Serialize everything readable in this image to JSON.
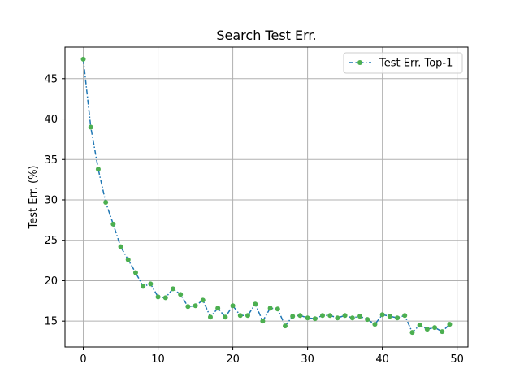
{
  "chart_data": {
    "type": "line",
    "title": "Search Test Err.",
    "xlabel": "",
    "ylabel": "Test Err. (%)",
    "xlim": [
      -2.45,
      51.45
    ],
    "ylim": [
      11.8,
      48.9
    ],
    "xticks": [
      0,
      10,
      20,
      30,
      40,
      50
    ],
    "yticks": [
      15,
      20,
      25,
      30,
      35,
      40,
      45
    ],
    "grid": true,
    "legend_position": "top-right",
    "series": [
      {
        "name": "Test Err. Top-1",
        "line_color": "#1f77b4",
        "marker_color": "#4caf50",
        "line_style": "dash-dot",
        "x": [
          0,
          1,
          2,
          3,
          4,
          5,
          6,
          7,
          8,
          9,
          10,
          11,
          12,
          13,
          14,
          15,
          16,
          17,
          18,
          19,
          20,
          21,
          22,
          23,
          24,
          25,
          26,
          27,
          28,
          29,
          30,
          31,
          32,
          33,
          34,
          35,
          36,
          37,
          38,
          39,
          40,
          41,
          42,
          43,
          44,
          45,
          46,
          47,
          48,
          49
        ],
        "y": [
          47.4,
          39.0,
          33.8,
          29.7,
          27.0,
          24.2,
          22.6,
          21.0,
          19.3,
          19.6,
          18.0,
          17.9,
          19.0,
          18.3,
          16.8,
          16.9,
          17.6,
          15.5,
          16.6,
          15.5,
          16.9,
          15.7,
          15.7,
          17.1,
          15.0,
          16.6,
          16.5,
          14.4,
          15.6,
          15.7,
          15.4,
          15.3,
          15.7,
          15.7,
          15.4,
          15.7,
          15.4,
          15.6,
          15.2,
          14.6,
          15.8,
          15.6,
          15.4,
          15.7,
          13.6,
          14.5,
          14.0,
          14.2,
          13.7,
          14.6
        ]
      }
    ]
  }
}
